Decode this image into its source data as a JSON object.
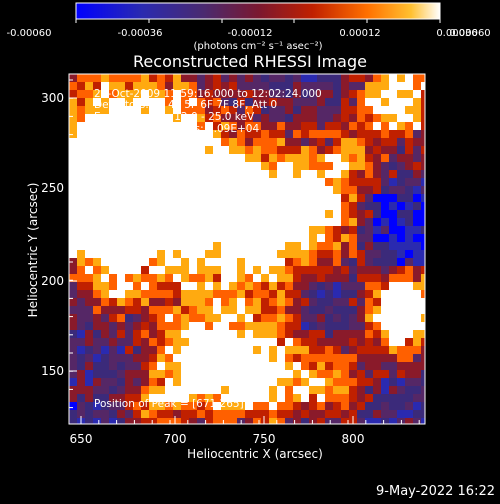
{
  "colorbar": {
    "ticks": [
      "-0.00060",
      "-0.00036",
      "-0.00012",
      "0.00012",
      "0.00036",
      "0.00060"
    ],
    "unit_label": "(photons cm⁻² s⁻¹ asec⁻²)"
  },
  "plot": {
    "title": "Reconstructed RHESSI Image",
    "xlabel": "Heliocentric X (arcsec)",
    "ylabel": "Heliocentric Y (arcsec)",
    "xticks": [
      "650",
      "700",
      "750",
      "800"
    ],
    "yticks": [
      "300",
      "250",
      "200",
      "150"
    ],
    "info_lines": [
      "28-Oct-2009 11:59:16.000 to 12:02:24.000",
      "Detectors: 3F 4F 5F 6F 7F 8F, Att 0",
      "Energy Range: 12.0 - 25.0 keV",
      "Clean    Total counts: 1.09E+04"
    ],
    "peak_label": "Position of Peak = [671,265]"
  },
  "timestamp": "9-May-2022 16:22",
  "colors": {
    "background": "#000000",
    "colormap": [
      "#0000ff",
      "#2a2ab0",
      "#3b2a7a",
      "#552766",
      "#8a1a2a",
      "#c02000",
      "#ff6000",
      "#ffaa10",
      "#ffffff"
    ]
  }
}
